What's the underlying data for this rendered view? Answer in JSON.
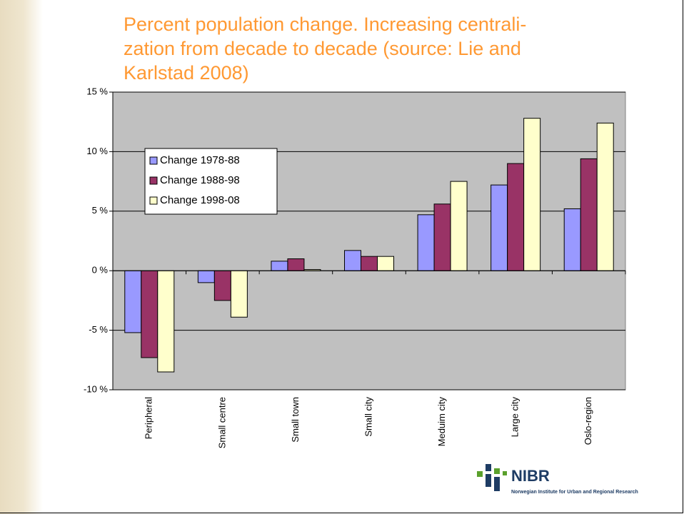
{
  "chart_data": {
    "type": "bar",
    "title": [
      "Percent population change. Increasing centrali-",
      "zation from decade to decade (source: Lie and",
      "Karlstad 2008)"
    ],
    "categories": [
      "Peripheral",
      "Small centre",
      "Small town",
      "Small city",
      "Meduim city",
      "Large city",
      "Oslo-region"
    ],
    "series": [
      {
        "name": "Change 1978-88",
        "color": "#9999ff",
        "values": [
          -5.2,
          -1.0,
          0.8,
          1.7,
          4.7,
          7.2,
          5.2
        ]
      },
      {
        "name": "Change 1988-98",
        "color": "#993366",
        "values": [
          -7.3,
          -2.5,
          1.0,
          1.2,
          5.6,
          9.0,
          9.4
        ]
      },
      {
        "name": "Change 1998-08",
        "color": "#ffffcc",
        "values": [
          -8.5,
          -3.9,
          0.1,
          1.2,
          7.5,
          12.8,
          12.4
        ]
      }
    ],
    "ylim": [
      -10,
      15
    ],
    "yticks": [
      {
        "value": -10,
        "label": "-10 %"
      },
      {
        "value": -5,
        "label": "-5 %"
      },
      {
        "value": 0,
        "label": "0 %"
      },
      {
        "value": 5,
        "label": "5 %"
      },
      {
        "value": 10,
        "label": "10 %"
      },
      {
        "value": 15,
        "label": "15 %"
      }
    ],
    "grid": true,
    "legend": "upper left",
    "plot_background": "#c0c0c0"
  },
  "logo": {
    "name": "NIBR",
    "tagline": "Norwegian Institute for Urban and Regional Research"
  }
}
